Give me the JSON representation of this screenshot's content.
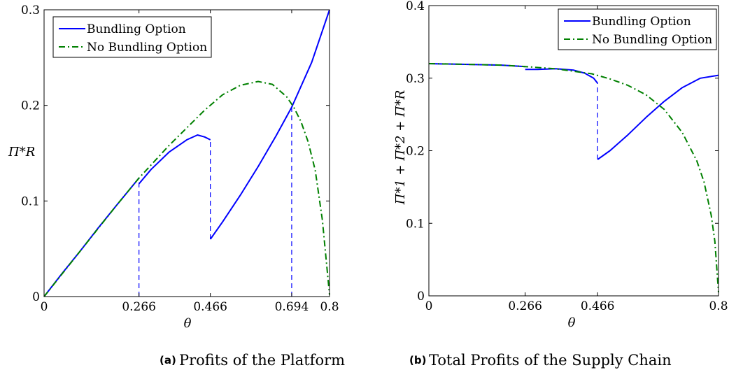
{
  "chart_data": [
    {
      "type": "line",
      "caption_tag": "(a)",
      "caption": "Profits of the Platform",
      "xlabel": "θ",
      "ylabel": "Π*R",
      "xlim": [
        0,
        0.8
      ],
      "ylim": [
        0,
        0.3
      ],
      "xticks": [
        "0",
        "0.266",
        "0.466",
        "0.694",
        "0.8"
      ],
      "yticks": [
        "0",
        "0.1",
        "0.2",
        "0.3"
      ],
      "legend_position": "top-left",
      "series": [
        {
          "name": "Bundling Option",
          "color": "#0000ff",
          "style": "solid",
          "segments": [
            [
              [
                0,
                0
              ],
              [
                0.05,
                0.024
              ],
              [
                0.1,
                0.047
              ],
              [
                0.15,
                0.071
              ],
              [
                0.2,
                0.094
              ],
              [
                0.266,
                0.124
              ]
            ],
            [
              [
                0.266,
                0.118
              ],
              [
                0.3,
                0.133
              ],
              [
                0.35,
                0.151
              ],
              [
                0.4,
                0.164
              ],
              [
                0.43,
                0.169
              ],
              [
                0.45,
                0.167
              ],
              [
                0.466,
                0.164
              ]
            ],
            [
              [
                0.466,
                0.06
              ],
              [
                0.5,
                0.078
              ],
              [
                0.55,
                0.106
              ],
              [
                0.6,
                0.136
              ],
              [
                0.65,
                0.168
              ],
              [
                0.694,
                0.198
              ],
              [
                0.75,
                0.245
              ],
              [
                0.8,
                0.3
              ]
            ]
          ]
        },
        {
          "name": "No Bundling Option",
          "color": "#008000",
          "style": "dashdot",
          "points": [
            [
              0,
              0
            ],
            [
              0.1,
              0.047
            ],
            [
              0.2,
              0.094
            ],
            [
              0.266,
              0.124
            ],
            [
              0.35,
              0.158
            ],
            [
              0.45,
              0.195
            ],
            [
              0.5,
              0.211
            ],
            [
              0.55,
              0.221
            ],
            [
              0.6,
              0.225
            ],
            [
              0.64,
              0.222
            ],
            [
              0.68,
              0.209
            ],
            [
              0.7,
              0.198
            ],
            [
              0.72,
              0.183
            ],
            [
              0.74,
              0.162
            ],
            [
              0.76,
              0.132
            ],
            [
              0.78,
              0.08
            ],
            [
              0.8,
              0.002
            ]
          ]
        }
      ],
      "guides": [
        {
          "x": 0.266,
          "from": 0,
          "to": 0.124
        },
        {
          "x": 0.466,
          "from": 0.06,
          "to": 0.164
        },
        {
          "x": 0.694,
          "from": 0,
          "to": 0.198
        }
      ]
    },
    {
      "type": "line",
      "caption_tag": "(b)",
      "caption": "Total Profits of the Supply Chain",
      "xlabel": "θ",
      "ylabel": "Π*1 + Π*2 + Π*R",
      "xlim": [
        0,
        0.8
      ],
      "ylim": [
        0,
        0.4
      ],
      "xticks": [
        "0",
        "0.266",
        "0.466",
        "0.8"
      ],
      "yticks": [
        "0",
        "0.1",
        "0.2",
        "0.3",
        "0.4"
      ],
      "legend_position": "top-right",
      "series": [
        {
          "name": "Bundling Option",
          "color": "#0000ff",
          "style": "solid",
          "segments": [
            [
              [
                0,
                0.32
              ],
              [
                0.1,
                0.319
              ],
              [
                0.2,
                0.318
              ],
              [
                0.266,
                0.316
              ]
            ],
            [
              [
                0.266,
                0.312
              ],
              [
                0.3,
                0.312
              ],
              [
                0.35,
                0.313
              ],
              [
                0.4,
                0.311
              ],
              [
                0.43,
                0.307
              ],
              [
                0.455,
                0.3
              ],
              [
                0.466,
                0.293
              ]
            ],
            [
              [
                0.466,
                0.188
              ],
              [
                0.5,
                0.2
              ],
              [
                0.55,
                0.222
              ],
              [
                0.6,
                0.246
              ],
              [
                0.65,
                0.268
              ],
              [
                0.7,
                0.287
              ],
              [
                0.75,
                0.3
              ],
              [
                0.8,
                0.304
              ]
            ]
          ]
        },
        {
          "name": "No Bundling Option",
          "color": "#008000",
          "style": "dashdot",
          "points": [
            [
              0,
              0.32
            ],
            [
              0.1,
              0.319
            ],
            [
              0.2,
              0.318
            ],
            [
              0.266,
              0.316
            ],
            [
              0.35,
              0.313
            ],
            [
              0.45,
              0.306
            ],
            [
              0.5,
              0.299
            ],
            [
              0.55,
              0.29
            ],
            [
              0.6,
              0.277
            ],
            [
              0.65,
              0.257
            ],
            [
              0.7,
              0.225
            ],
            [
              0.74,
              0.186
            ],
            [
              0.76,
              0.157
            ],
            [
              0.78,
              0.111
            ],
            [
              0.79,
              0.075
            ],
            [
              0.8,
              0.005
            ]
          ]
        }
      ],
      "guides": [
        {
          "x": 0.466,
          "from": 0.188,
          "to": 0.293
        }
      ]
    }
  ]
}
